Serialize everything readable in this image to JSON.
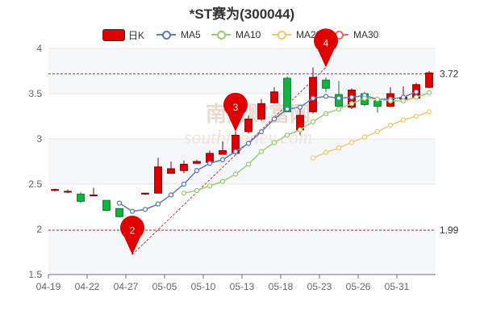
{
  "title": "*ST赛为(300044)",
  "watermark": {
    "top": "南方财富网",
    "bottom": "southmoney.com"
  },
  "legend": [
    {
      "key": "k",
      "label": "日K",
      "color": "#e00000"
    },
    {
      "key": "ma5",
      "label": "MA5",
      "color": "#5b7bc4"
    },
    {
      "key": "ma10",
      "label": "MA10",
      "color": "#9ccc74"
    },
    {
      "key": "ma20",
      "label": "MA20",
      "color": "#f5c96a"
    },
    {
      "key": "ma30",
      "label": "MA30",
      "color": "#e8696e"
    }
  ],
  "chart_data": {
    "type": "candlestick",
    "title": "*ST赛为(300044)",
    "ylim": [
      1.5,
      4
    ],
    "yticks": [
      "1.5",
      "2",
      "2.5",
      "3",
      "3.5",
      "4"
    ],
    "x_tick_labels": [
      {
        "index": 0,
        "label": "04-19"
      },
      {
        "index": 3,
        "label": "04-22"
      },
      {
        "index": 6,
        "label": "04-27"
      },
      {
        "index": 9,
        "label": "05-05"
      },
      {
        "index": 12,
        "label": "05-10"
      },
      {
        "index": 15,
        "label": "05-13"
      },
      {
        "index": 18,
        "label": "05-18"
      },
      {
        "index": 21,
        "label": "05-23"
      },
      {
        "index": 24,
        "label": "05-26"
      },
      {
        "index": 27,
        "label": "05-31"
      }
    ],
    "candles": [
      {
        "o": 2.43,
        "c": 2.44,
        "h": 2.45,
        "l": 2.42
      },
      {
        "o": 2.42,
        "c": 2.42,
        "h": 2.44,
        "l": 2.4
      },
      {
        "o": 2.39,
        "c": 2.31,
        "h": 2.41,
        "l": 2.29
      },
      {
        "o": 2.38,
        "c": 2.38,
        "h": 2.46,
        "l": 2.37
      },
      {
        "o": 2.32,
        "c": 2.21,
        "h": 2.32,
        "l": 2.2
      },
      {
        "o": 2.23,
        "c": 2.14,
        "h": 2.23,
        "l": 2.13
      },
      {
        "o": 2.09,
        "c": 2.09,
        "h": 2.12,
        "l": 1.72
      },
      {
        "o": 2.39,
        "c": 2.4,
        "h": 2.4,
        "l": 2.38
      },
      {
        "o": 2.4,
        "c": 2.69,
        "h": 2.79,
        "l": 2.4
      },
      {
        "o": 2.62,
        "c": 2.67,
        "h": 2.75,
        "l": 2.62
      },
      {
        "o": 2.65,
        "c": 2.72,
        "h": 2.76,
        "l": 2.62
      },
      {
        "o": 2.73,
        "c": 2.75,
        "h": 2.77,
        "l": 2.73
      },
      {
        "o": 2.74,
        "c": 2.84,
        "h": 2.87,
        "l": 2.72
      },
      {
        "o": 2.83,
        "c": 2.87,
        "h": 2.97,
        "l": 2.83
      },
      {
        "o": 2.84,
        "c": 3.04,
        "h": 3.08,
        "l": 2.82
      },
      {
        "o": 3.08,
        "c": 3.22,
        "h": 3.26,
        "l": 3.06
      },
      {
        "o": 3.22,
        "c": 3.39,
        "h": 3.44,
        "l": 3.2
      },
      {
        "o": 3.4,
        "c": 3.52,
        "h": 3.57,
        "l": 3.39
      },
      {
        "o": 3.67,
        "c": 3.3,
        "h": 3.69,
        "l": 3.3
      },
      {
        "o": 3.1,
        "c": 3.26,
        "h": 3.34,
        "l": 3.04
      },
      {
        "o": 3.3,
        "c": 3.68,
        "h": 3.79,
        "l": 3.28
      },
      {
        "o": 3.65,
        "c": 3.56,
        "h": 3.68,
        "l": 3.52
      },
      {
        "o": 3.49,
        "c": 3.36,
        "h": 3.64,
        "l": 3.32
      },
      {
        "o": 3.35,
        "c": 3.54,
        "h": 3.56,
        "l": 3.33
      },
      {
        "o": 3.5,
        "c": 3.38,
        "h": 3.52,
        "l": 3.36
      },
      {
        "o": 3.42,
        "c": 3.36,
        "h": 3.44,
        "l": 3.29
      },
      {
        "o": 3.36,
        "c": 3.5,
        "h": 3.57,
        "l": 3.35
      },
      {
        "o": 3.44,
        "c": 3.46,
        "h": 3.58,
        "l": 3.42
      },
      {
        "o": 3.45,
        "c": 3.6,
        "h": 3.62,
        "l": 3.44
      },
      {
        "o": 3.57,
        "c": 3.73,
        "h": 3.75,
        "l": 3.56
      }
    ],
    "series": [
      {
        "name": "MA5",
        "start_index": 5,
        "values": [
          2.29,
          2.2,
          2.22,
          2.28,
          2.38,
          2.5,
          2.65,
          2.73,
          2.77,
          2.86,
          2.95,
          3.08,
          3.22,
          3.33,
          3.35,
          3.45,
          3.47,
          3.45,
          3.46,
          3.48,
          3.44,
          3.44,
          3.46,
          3.52
        ]
      },
      {
        "name": "MA10",
        "start_index": 10,
        "values": [
          2.4,
          2.43,
          2.48,
          2.53,
          2.61,
          2.72,
          2.86,
          2.96,
          3.04,
          3.1,
          3.19,
          3.28,
          3.33,
          3.39,
          3.45,
          3.44,
          3.42,
          3.42,
          3.46,
          3.51
        ]
      },
      {
        "name": "MA20",
        "start_index": 20,
        "values": [
          2.79,
          2.85,
          2.9,
          2.96,
          3.02,
          3.08,
          3.15,
          3.21,
          3.25,
          3.3
        ]
      }
    ],
    "reference_lines": [
      {
        "value": 3.72,
        "label": "3.72"
      },
      {
        "value": 1.99,
        "label": "1.99"
      }
    ],
    "markers": [
      {
        "index": 6,
        "value": 1.72,
        "label": "2"
      },
      {
        "index": 14,
        "value": 3.08,
        "label": "3"
      },
      {
        "index": 21,
        "value": 3.79,
        "label": "4"
      }
    ],
    "trendline": {
      "from": {
        "index": 6,
        "value": 1.72
      },
      "to": {
        "index": 21,
        "value": 3.79
      }
    }
  }
}
